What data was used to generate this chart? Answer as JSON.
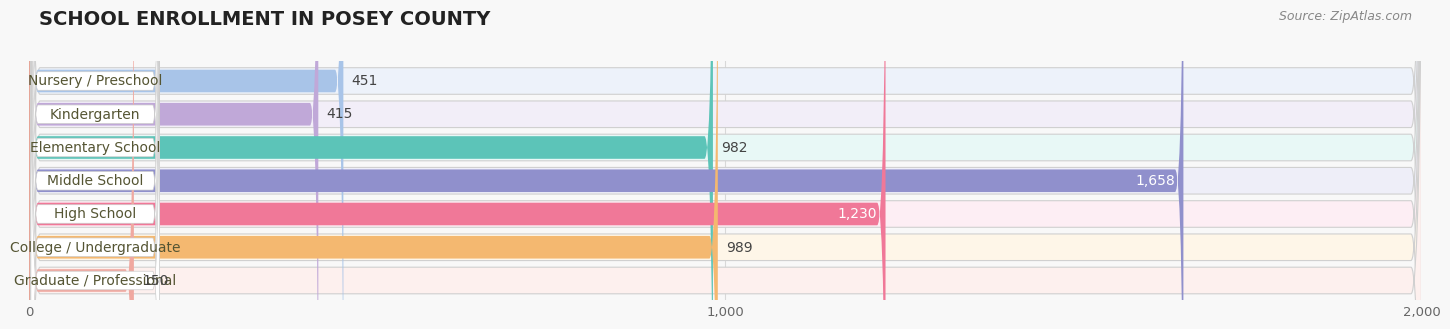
{
  "title": "SCHOOL ENROLLMENT IN POSEY COUNTY",
  "source": "Source: ZipAtlas.com",
  "categories": [
    "Nursery / Preschool",
    "Kindergarten",
    "Elementary School",
    "Middle School",
    "High School",
    "College / Undergraduate",
    "Graduate / Professional"
  ],
  "values": [
    451,
    415,
    982,
    1658,
    1230,
    989,
    150
  ],
  "bar_colors": [
    "#a8c4e8",
    "#c0a8d8",
    "#5cc4b8",
    "#9090cc",
    "#f07898",
    "#f4b870",
    "#f0a8a0"
  ],
  "bar_bg_colors": [
    "#edf2fa",
    "#f2eef8",
    "#e8f8f6",
    "#eeeef8",
    "#fdeef4",
    "#fef6e8",
    "#fdf0ee"
  ],
  "xlim": [
    0,
    2000
  ],
  "xticks": [
    0,
    1000,
    2000
  ],
  "xticklabels": [
    "0",
    "1,000",
    "2,000"
  ],
  "title_fontsize": 14,
  "source_fontsize": 9,
  "label_fontsize": 10,
  "value_fontsize": 10,
  "background_color": "#f8f8f8"
}
